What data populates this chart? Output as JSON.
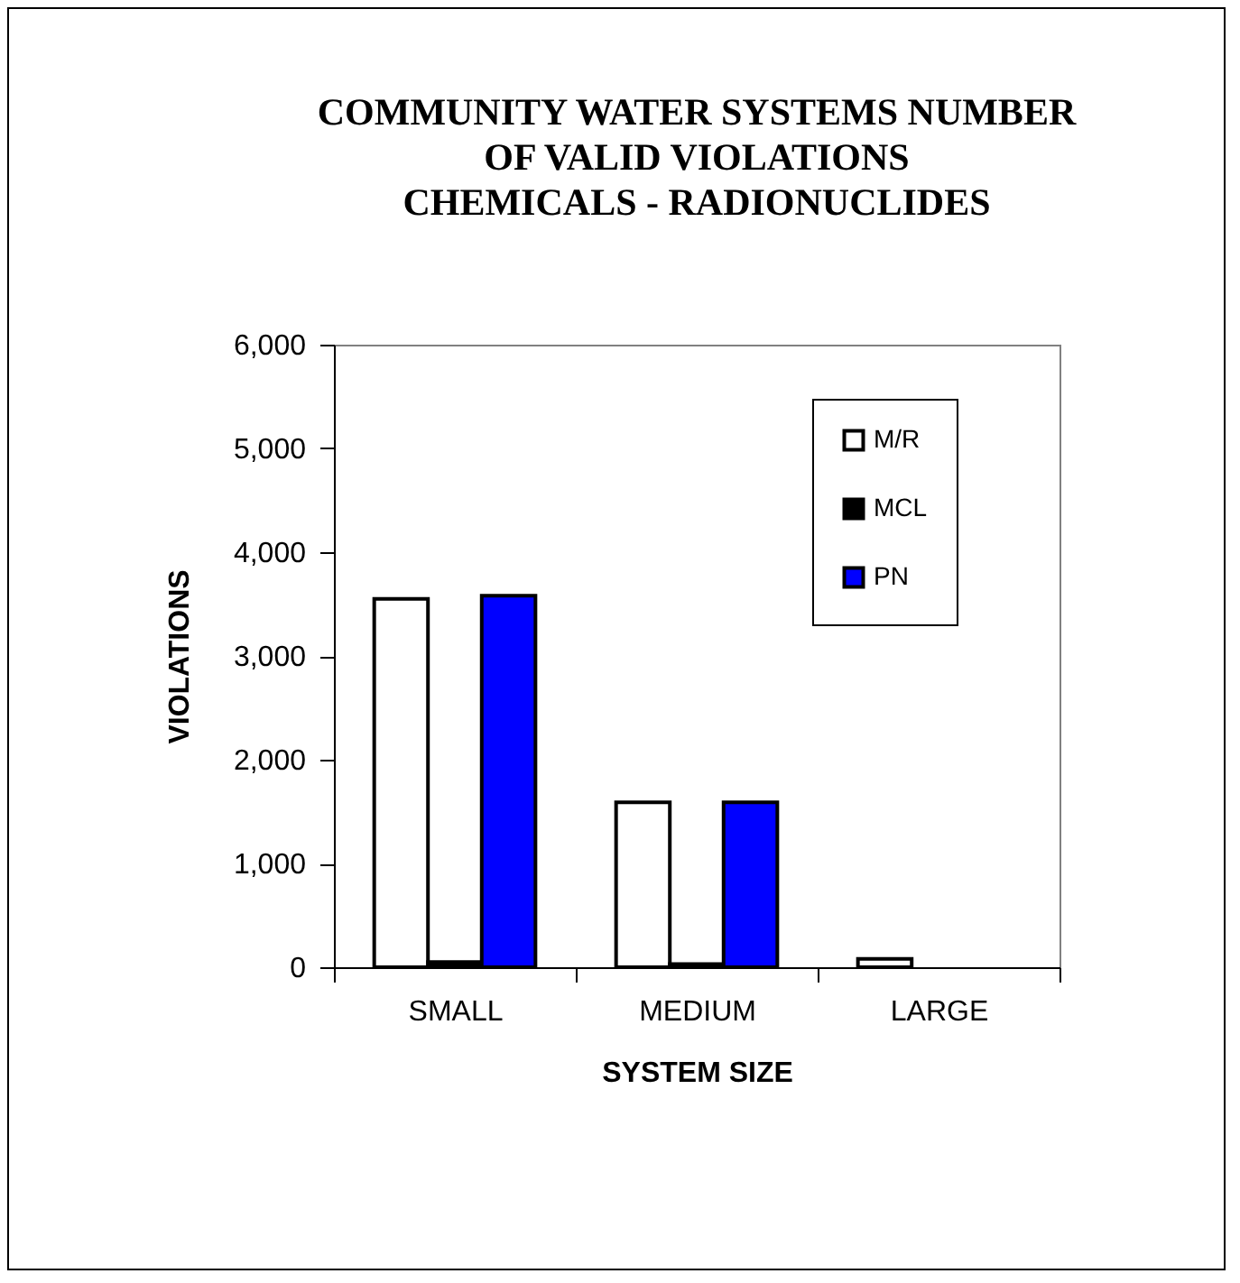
{
  "chart_data": {
    "type": "bar",
    "title": [
      "COMMUNITY WATER SYSTEMS NUMBER",
      "OF VALID VIOLATIONS",
      "CHEMICALS - RADIONUCLIDES"
    ],
    "xlabel": "SYSTEM SIZE",
    "ylabel": "VIOLATIONS",
    "categories": [
      "SMALL",
      "MEDIUM",
      "LARGE"
    ],
    "series": [
      {
        "name": "M/R",
        "color": "#ffffff",
        "values": [
          3550,
          1590,
          80
        ]
      },
      {
        "name": "MCL",
        "color": "#000000",
        "values": [
          50,
          30,
          null
        ]
      },
      {
        "name": "PN",
        "color": "#0000ff",
        "values": [
          3580,
          1590,
          null
        ]
      }
    ],
    "ylim": [
      0,
      6000
    ],
    "yticks": [
      {
        "value": 0,
        "label": "0"
      },
      {
        "value": 1000,
        "label": "1,000"
      },
      {
        "value": 2000,
        "label": "2,000"
      },
      {
        "value": 3000,
        "label": "3,000"
      },
      {
        "value": 4000,
        "label": "4,000"
      },
      {
        "value": 5000,
        "label": "5,000"
      },
      {
        "value": 6000,
        "label": "6,000"
      }
    ],
    "legend": "top right"
  }
}
